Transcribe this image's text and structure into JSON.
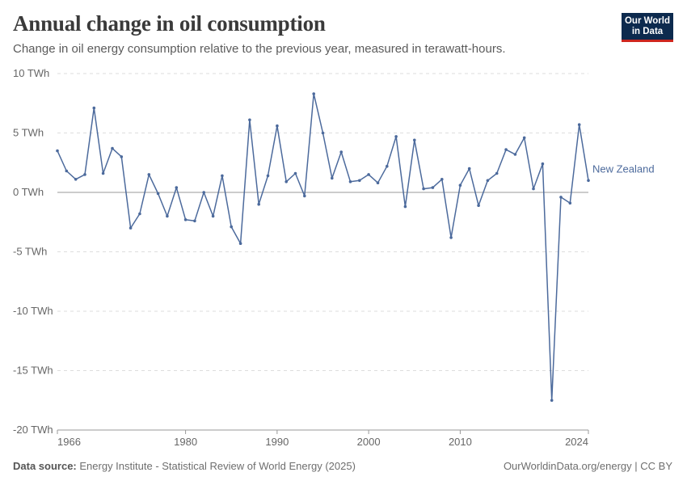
{
  "header": {
    "title": "Annual change in oil consumption",
    "subtitle": "Change in oil energy consumption relative to the previous year, measured in terawatt-hours.",
    "logo_line1": "Our World",
    "logo_line2": "in Data"
  },
  "footer": {
    "source_label": "Data source:",
    "source_text": "Energy Institute - Statistical Review of World Energy (2025)",
    "credit": "OurWorldinData.org/energy | CC BY"
  },
  "colors": {
    "series": "#4c6a9c",
    "zero_line": "#999999",
    "grid": "#dddddd"
  },
  "chart_data": {
    "type": "line",
    "title": "Annual change in oil consumption",
    "xlabel": "",
    "ylabel": "",
    "unit": "TWh",
    "xlim": [
      1966,
      2024
    ],
    "ylim": [
      -20,
      10
    ],
    "grid": true,
    "y_ticks": [
      10,
      5,
      0,
      -5,
      -10,
      -15,
      -20
    ],
    "y_tick_labels": [
      "10 TWh",
      "5 TWh",
      "0 TWh",
      "-5 TWh",
      "-10 TWh",
      "-15 TWh",
      "-20 TWh"
    ],
    "x_ticks": [
      1966,
      1980,
      1990,
      2000,
      2010,
      2024
    ],
    "x_tick_labels": [
      "1966",
      "1980",
      "1990",
      "2000",
      "2010",
      "2024"
    ],
    "series": [
      {
        "name": "New Zealand",
        "x": [
          1966,
          1967,
          1968,
          1969,
          1970,
          1971,
          1972,
          1973,
          1974,
          1975,
          1976,
          1977,
          1978,
          1979,
          1980,
          1981,
          1982,
          1983,
          1984,
          1985,
          1986,
          1987,
          1988,
          1989,
          1990,
          1991,
          1992,
          1993,
          1994,
          1995,
          1996,
          1997,
          1998,
          1999,
          2000,
          2001,
          2002,
          2003,
          2004,
          2005,
          2006,
          2007,
          2008,
          2009,
          2010,
          2011,
          2012,
          2013,
          2014,
          2015,
          2016,
          2017,
          2018,
          2019,
          2020,
          2021,
          2022,
          2023,
          2024
        ],
        "values": [
          3.5,
          1.8,
          1.1,
          1.5,
          7.1,
          1.6,
          3.7,
          3.0,
          -3.0,
          -1.8,
          1.5,
          -0.1,
          -2.0,
          0.4,
          -2.3,
          -2.4,
          0.0,
          -2.0,
          1.4,
          -2.9,
          -4.3,
          6.1,
          -1.0,
          1.4,
          5.6,
          0.9,
          1.6,
          -0.3,
          8.3,
          5.0,
          1.2,
          3.4,
          0.9,
          1.0,
          1.5,
          0.8,
          2.2,
          4.7,
          -1.2,
          4.4,
          0.3,
          0.4,
          1.1,
          -3.8,
          0.6,
          2.0,
          -1.1,
          1.0,
          1.6,
          3.6,
          3.2,
          4.6,
          0.3,
          2.4,
          -17.5,
          -0.4,
          -0.9,
          5.7,
          1.0
        ]
      }
    ]
  }
}
